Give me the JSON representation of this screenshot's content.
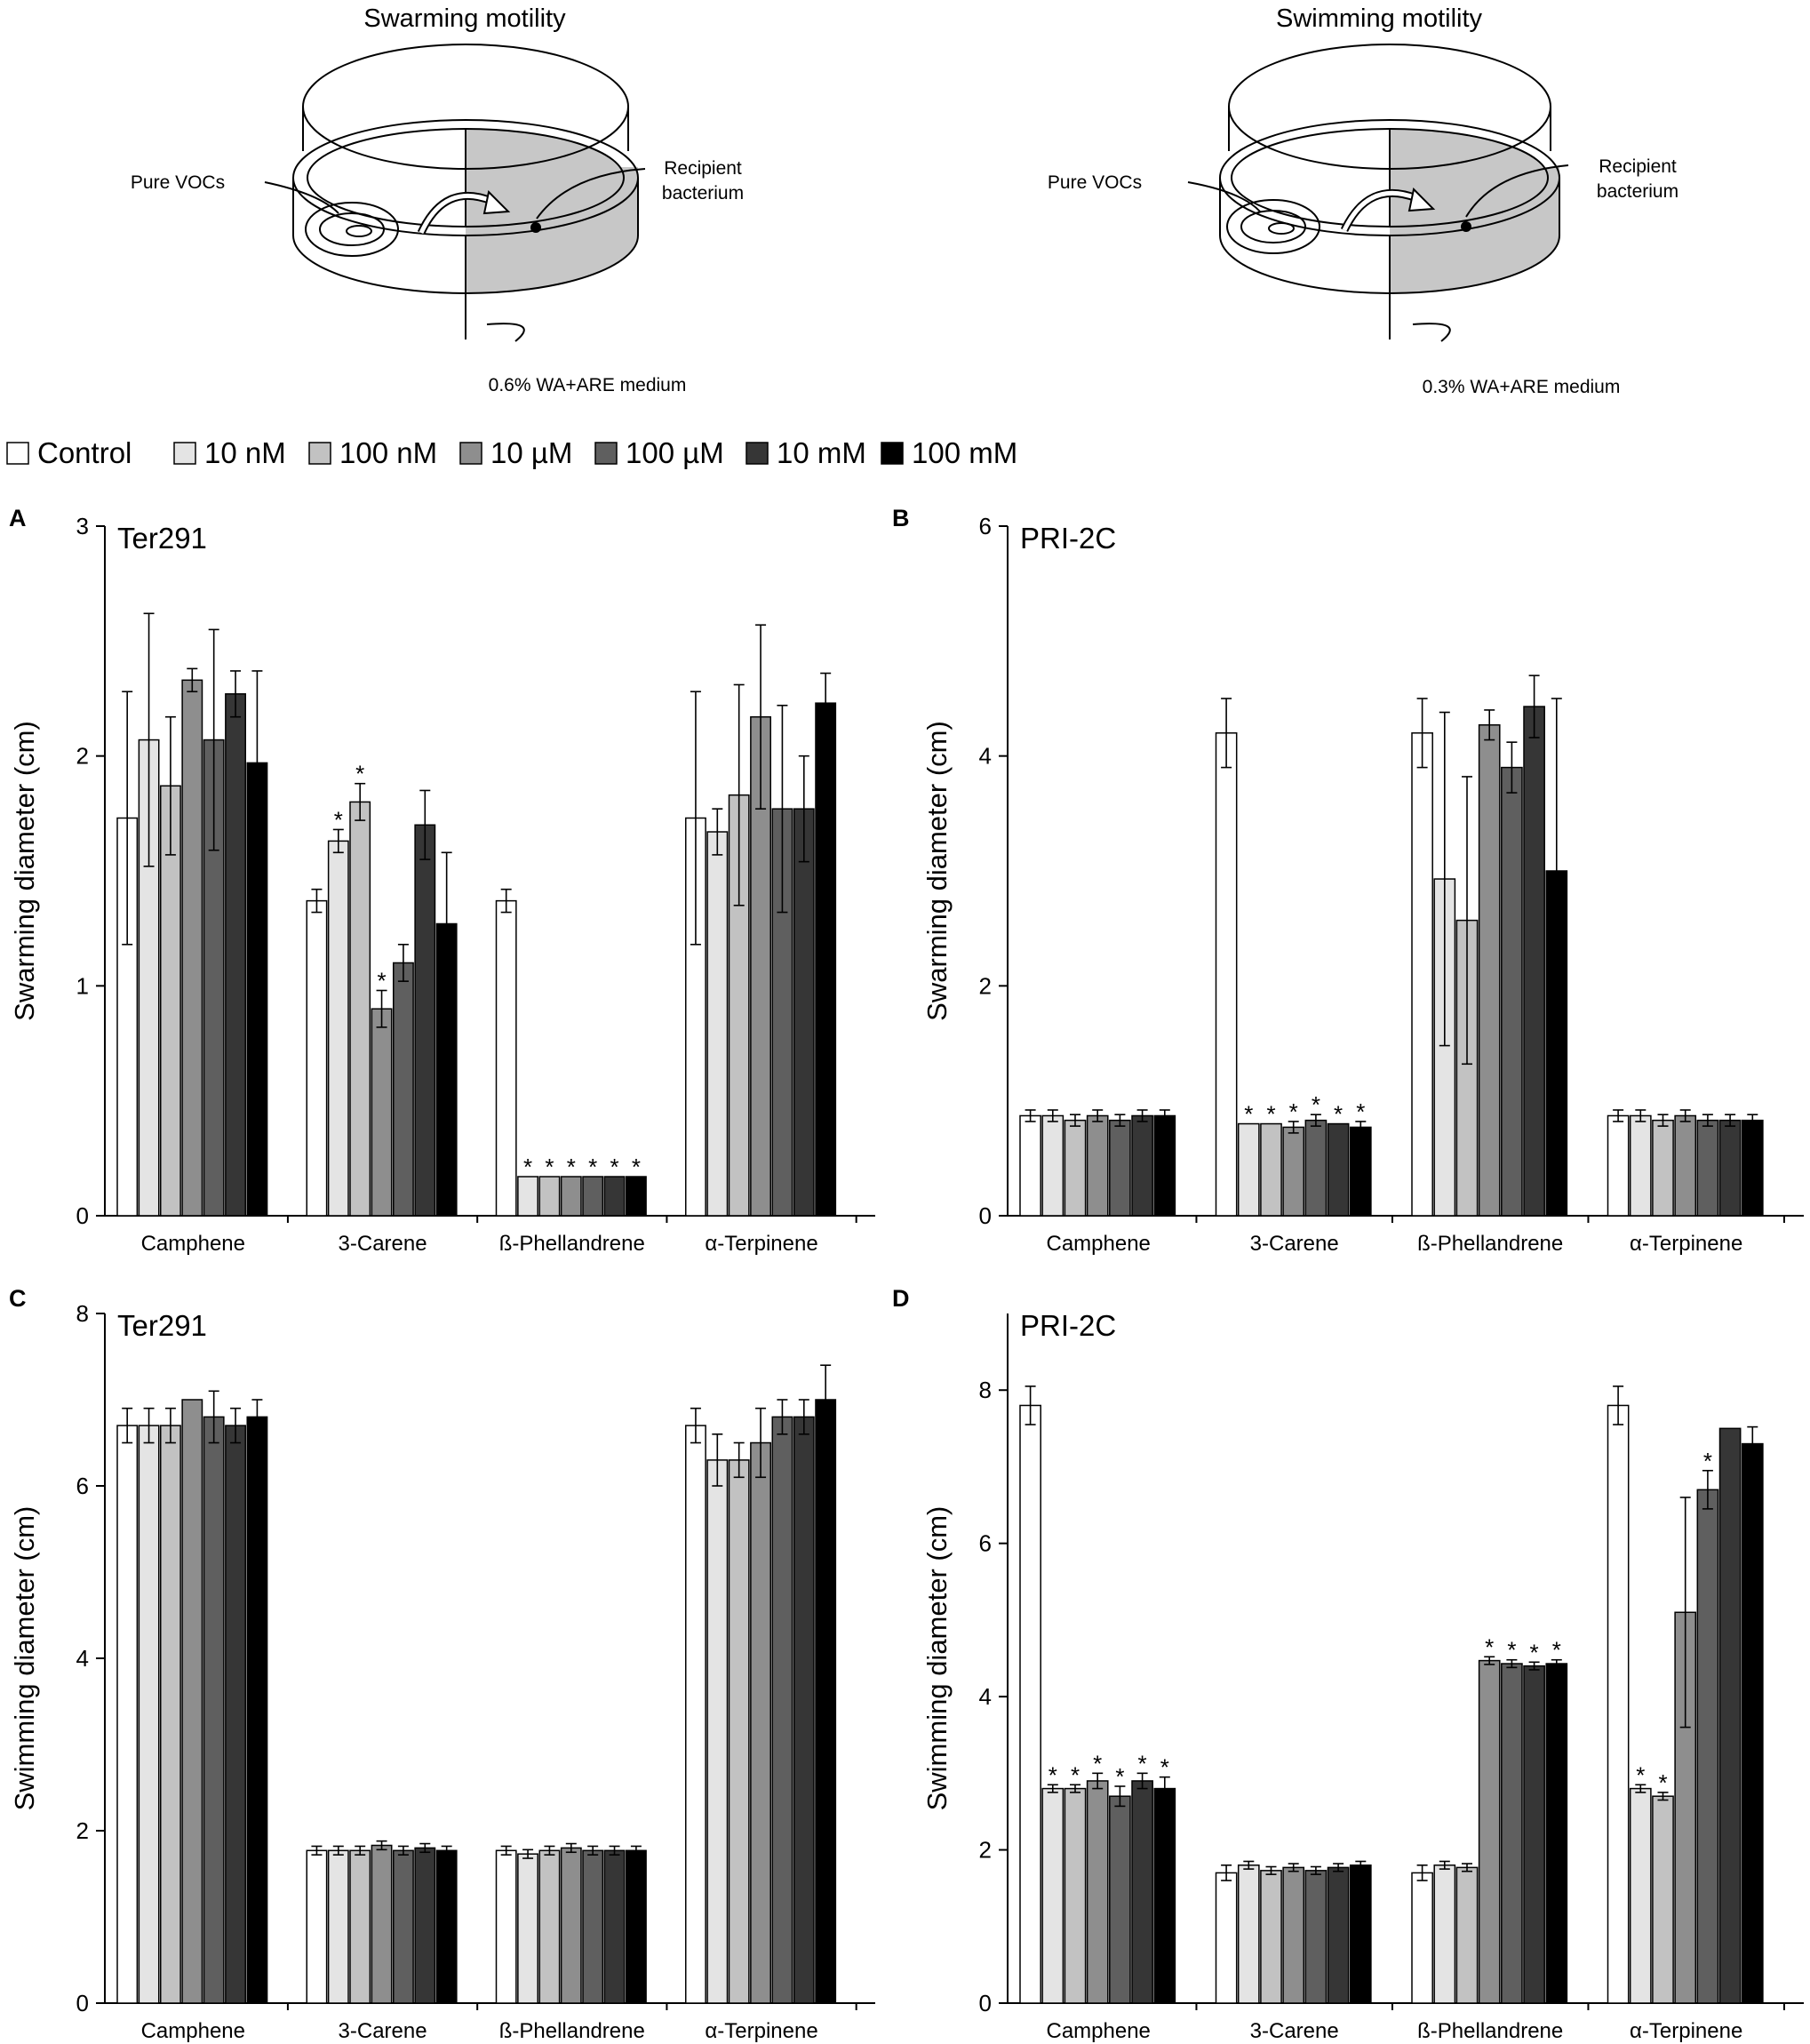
{
  "figure": {
    "diagrams": [
      {
        "title": "Swarming motility",
        "label_vocs": "Pure VOCs",
        "label_recipient_1": "Recipient",
        "label_recipient_2": "bacterium",
        "label_medium": "0.6% WA+ARE medium"
      },
      {
        "title": "Swimming motility",
        "label_vocs": "Pure VOCs",
        "label_recipient_1": "Recipient",
        "label_recipient_2": "bacterium",
        "label_medium": "0.3% WA+ARE medium"
      }
    ],
    "legend": {
      "entries": [
        {
          "label": "Control",
          "color": "#ffffff"
        },
        {
          "label": "10 nM",
          "color": "#e4e4e4"
        },
        {
          "label": "100 nM",
          "color": "#c2c2c2"
        },
        {
          "label": "10 µM",
          "color": "#8e8e8e"
        },
        {
          "label": "100 µM",
          "color": "#5f5f5f"
        },
        {
          "label": "10 mM",
          "color": "#363636"
        },
        {
          "label": "100 mM",
          "color": "#000000"
        }
      ]
    },
    "significance_marker": "*"
  },
  "chart_data": [
    {
      "type": "bar",
      "panel": "A",
      "strain": "Ter291",
      "ylabel": "Swarming diameter (cm)",
      "ylim": [
        0,
        3
      ],
      "yticks": [
        0,
        1,
        2,
        3
      ],
      "categories": [
        "Camphene",
        "3-Carene",
        "ß-Phellandrene",
        "α-Terpinene"
      ],
      "series": [
        {
          "name": "Control",
          "values": [
            1.73,
            1.37,
            1.37,
            1.73
          ],
          "errors": [
            0.55,
            0.05,
            0.05,
            0.55
          ],
          "sig": [
            false,
            false,
            false,
            false
          ]
        },
        {
          "name": "10 nM",
          "values": [
            2.07,
            1.63,
            0.17,
            1.67
          ],
          "errors": [
            0.55,
            0.05,
            0.0,
            0.1
          ],
          "sig": [
            false,
            true,
            true,
            false
          ]
        },
        {
          "name": "100 nM",
          "values": [
            1.87,
            1.8,
            0.17,
            1.83
          ],
          "errors": [
            0.3,
            0.08,
            0.0,
            0.48
          ],
          "sig": [
            false,
            true,
            true,
            false
          ]
        },
        {
          "name": "10 µM",
          "values": [
            2.33,
            0.9,
            0.17,
            2.17
          ],
          "errors": [
            0.05,
            0.08,
            0.0,
            0.4
          ],
          "sig": [
            false,
            true,
            true,
            false
          ]
        },
        {
          "name": "100 µM",
          "values": [
            2.07,
            1.1,
            0.17,
            1.77
          ],
          "errors": [
            0.48,
            0.08,
            0.0,
            0.45
          ],
          "sig": [
            false,
            false,
            true,
            false
          ]
        },
        {
          "name": "10 mM",
          "values": [
            2.27,
            1.7,
            0.17,
            1.77
          ],
          "errors": [
            0.1,
            0.15,
            0.0,
            0.23
          ],
          "sig": [
            false,
            false,
            true,
            false
          ]
        },
        {
          "name": "100 mM",
          "values": [
            1.97,
            1.27,
            0.17,
            2.23
          ],
          "errors": [
            0.4,
            0.31,
            0.0,
            0.13
          ],
          "sig": [
            false,
            false,
            true,
            false
          ]
        }
      ]
    },
    {
      "type": "bar",
      "panel": "B",
      "strain": "PRI-2C",
      "ylabel": "Swarming diameter (cm)",
      "ylim": [
        0,
        6
      ],
      "yticks": [
        0,
        2,
        4,
        6
      ],
      "categories": [
        "Camphene",
        "3-Carene",
        "ß-Phellandrene",
        "α-Terpinene"
      ],
      "series": [
        {
          "name": "Control",
          "values": [
            0.87,
            4.2,
            4.2,
            0.87
          ],
          "errors": [
            0.05,
            0.3,
            0.3,
            0.05
          ],
          "sig": [
            false,
            false,
            false,
            false
          ]
        },
        {
          "name": "10 nM",
          "values": [
            0.87,
            0.8,
            2.93,
            0.87
          ],
          "errors": [
            0.05,
            0.0,
            1.45,
            0.05
          ],
          "sig": [
            false,
            true,
            false,
            false
          ]
        },
        {
          "name": "100 nM",
          "values": [
            0.83,
            0.8,
            2.57,
            0.83
          ],
          "errors": [
            0.05,
            0.0,
            1.25,
            0.05
          ],
          "sig": [
            false,
            true,
            false,
            false
          ]
        },
        {
          "name": "10 µM",
          "values": [
            0.87,
            0.77,
            4.27,
            0.87
          ],
          "errors": [
            0.05,
            0.05,
            0.13,
            0.05
          ],
          "sig": [
            false,
            true,
            false,
            false
          ]
        },
        {
          "name": "100 µM",
          "values": [
            0.83,
            0.83,
            3.9,
            0.83
          ],
          "errors": [
            0.05,
            0.05,
            0.22,
            0.05
          ],
          "sig": [
            false,
            true,
            false,
            false
          ]
        },
        {
          "name": "10 mM",
          "values": [
            0.87,
            0.8,
            4.43,
            0.83
          ],
          "errors": [
            0.05,
            0.0,
            0.27,
            0.05
          ],
          "sig": [
            false,
            true,
            false,
            false
          ]
        },
        {
          "name": "100 mM",
          "values": [
            0.87,
            0.77,
            3.0,
            0.83
          ],
          "errors": [
            0.05,
            0.05,
            1.5,
            0.05
          ],
          "sig": [
            false,
            true,
            false,
            false
          ]
        }
      ]
    },
    {
      "type": "bar",
      "panel": "C",
      "strain": "Ter291",
      "ylabel": "Swimming diameter (cm)",
      "ylim": [
        0,
        8
      ],
      "yticks": [
        0,
        2,
        4,
        6,
        8
      ],
      "categories": [
        "Camphene",
        "3-Carene",
        "ß-Phellandrene",
        "α-Terpinene"
      ],
      "series": [
        {
          "name": "Control",
          "values": [
            6.7,
            1.77,
            1.77,
            6.7
          ],
          "errors": [
            0.2,
            0.05,
            0.05,
            0.2
          ],
          "sig": [
            false,
            false,
            false,
            false
          ]
        },
        {
          "name": "10 nM",
          "values": [
            6.7,
            1.77,
            1.73,
            6.3
          ],
          "errors": [
            0.2,
            0.05,
            0.05,
            0.3
          ],
          "sig": [
            false,
            false,
            false,
            false
          ]
        },
        {
          "name": "100 nM",
          "values": [
            6.7,
            1.77,
            1.77,
            6.3
          ],
          "errors": [
            0.2,
            0.05,
            0.05,
            0.2
          ],
          "sig": [
            false,
            false,
            false,
            false
          ]
        },
        {
          "name": "10 µM",
          "values": [
            7.0,
            1.83,
            1.8,
            6.5
          ],
          "errors": [
            0.0,
            0.05,
            0.05,
            0.4
          ],
          "sig": [
            false,
            false,
            false,
            false
          ]
        },
        {
          "name": "100 µM",
          "values": [
            6.8,
            1.77,
            1.77,
            6.8
          ],
          "errors": [
            0.3,
            0.05,
            0.05,
            0.2
          ],
          "sig": [
            false,
            false,
            false,
            false
          ]
        },
        {
          "name": "10 mM",
          "values": [
            6.7,
            1.8,
            1.77,
            6.8
          ],
          "errors": [
            0.2,
            0.05,
            0.05,
            0.2
          ],
          "sig": [
            false,
            false,
            false,
            false
          ]
        },
        {
          "name": "100 mM",
          "values": [
            6.8,
            1.77,
            1.77,
            7.0
          ],
          "errors": [
            0.2,
            0.05,
            0.05,
            0.4
          ],
          "sig": [
            false,
            false,
            false,
            false
          ]
        }
      ]
    },
    {
      "type": "bar",
      "panel": "D",
      "strain": "PRI-2C",
      "ylabel": "Swimming diameter (cm)",
      "ylim": [
        0,
        9
      ],
      "yticks": [
        0,
        2,
        4,
        6,
        8
      ],
      "categories": [
        "Camphene",
        "3-Carene",
        "ß-Phellandrene",
        "α-Terpinene"
      ],
      "series": [
        {
          "name": "Control",
          "values": [
            7.8,
            1.7,
            1.7,
            7.8
          ],
          "errors": [
            0.25,
            0.1,
            0.1,
            0.25
          ],
          "sig": [
            false,
            false,
            false,
            false
          ]
        },
        {
          "name": "10 nM",
          "values": [
            2.8,
            1.8,
            1.8,
            2.8
          ],
          "errors": [
            0.05,
            0.05,
            0.05,
            0.05
          ],
          "sig": [
            true,
            false,
            false,
            true
          ]
        },
        {
          "name": "100 nM",
          "values": [
            2.8,
            1.73,
            1.77,
            2.7
          ],
          "errors": [
            0.05,
            0.05,
            0.05,
            0.05
          ],
          "sig": [
            true,
            false,
            false,
            true
          ]
        },
        {
          "name": "10 µM",
          "values": [
            2.9,
            1.77,
            4.47,
            5.1
          ],
          "errors": [
            0.1,
            0.05,
            0.05,
            1.5
          ],
          "sig": [
            true,
            false,
            true,
            false
          ]
        },
        {
          "name": "100 µM",
          "values": [
            2.7,
            1.73,
            4.43,
            6.7
          ],
          "errors": [
            0.13,
            0.05,
            0.05,
            0.25
          ],
          "sig": [
            true,
            false,
            true,
            true
          ]
        },
        {
          "name": "10 mM",
          "values": [
            2.9,
            1.77,
            4.4,
            7.5
          ],
          "errors": [
            0.1,
            0.05,
            0.05,
            0.0
          ],
          "sig": [
            true,
            false,
            true,
            false
          ]
        },
        {
          "name": "100 mM",
          "values": [
            2.8,
            1.8,
            4.43,
            7.3
          ],
          "errors": [
            0.15,
            0.05,
            0.05,
            0.22
          ],
          "sig": [
            true,
            false,
            true,
            false
          ]
        }
      ]
    }
  ]
}
